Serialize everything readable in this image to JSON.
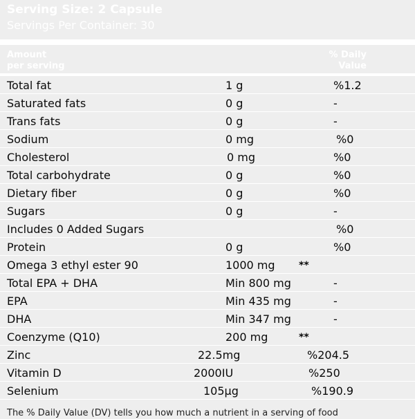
{
  "serving_size": "Serving Size: 2 Capsule",
  "servings_per_container": "Servings Per Container: 30",
  "header": {
    "amount_line1": "Amount",
    "amount_line2": "per serving",
    "dv_line1": "% Daily",
    "dv_line2": "Value"
  },
  "rows": [
    {
      "name": "Total fat",
      "amount": "1 g",
      "dv": "%1.2"
    },
    {
      "name": "Saturated fats",
      "amount": "0 g",
      "dv": "-"
    },
    {
      "name": "Trans fats",
      "amount": "0 g",
      "dv": "-"
    },
    {
      "name": "Sodium",
      "amount": "0 mg",
      "dv": "%0"
    },
    {
      "name": "Cholesterol",
      "amount": "0 mg",
      "dv": "%0"
    },
    {
      "name": "Total carbohydrate",
      "amount": "0 g",
      "dv": "%0"
    },
    {
      "name": "Dietary fiber",
      "amount": "0 g",
      "dv": "%0"
    },
    {
      "name": "Sugars",
      "amount": "0 g",
      "dv": "-"
    },
    {
      "name": "Includes 0 Added Sugars",
      "amount": "",
      "dv": "%0"
    },
    {
      "name": "Protein",
      "amount": "0 g",
      "dv": "%0"
    },
    {
      "name": "Omega 3 ethyl ester 90",
      "amount": "1000 mg",
      "dv": "**"
    },
    {
      "name": "Total EPA + DHA",
      "amount": "Min 800 mg",
      "dv": "-"
    },
    {
      "name": "EPA",
      "amount": "Min 435 mg",
      "dv": "-"
    },
    {
      "name": "DHA",
      "amount": "Min 347 mg",
      "dv": "-"
    },
    {
      "name": "Coenzyme (Q10)",
      "amount": "200 mg",
      "dv": "**"
    },
    {
      "name": "Zinc",
      "amount": "22.5mg",
      "dv": "%204.5"
    },
    {
      "name": "Vitamin D",
      "amount": "2000IU",
      "dv": "%250"
    },
    {
      "name": "Selenium",
      "amount": "105µg",
      "dv": "%190.9"
    }
  ],
  "footnote": "The % Daily Value (DV) tells you how much a nutrient in a serving of food"
}
